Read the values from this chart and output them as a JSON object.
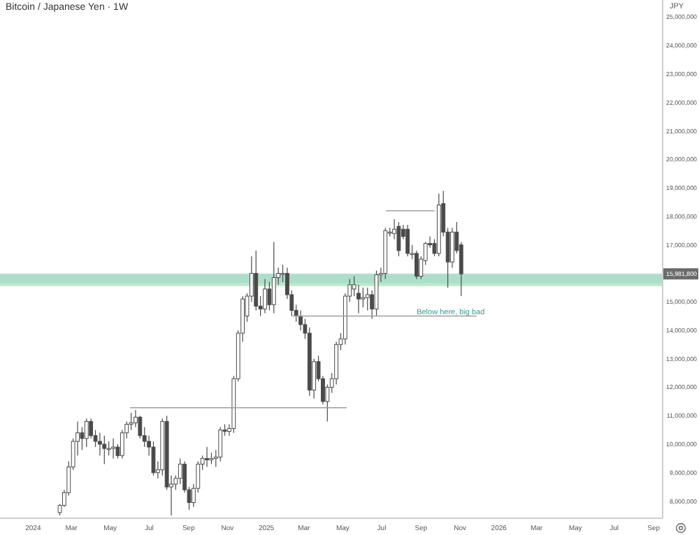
{
  "chart_data": {
    "type": "candlestick",
    "title": "Bitcoin / Japanese Yen · 1W",
    "ylabel": "JPY",
    "color": "#4a4a4a",
    "x": [
      "2024-02-12",
      "2024-02-19",
      "2024-02-26",
      "2024-03-04",
      "2024-03-11",
      "2024-03-18",
      "2024-03-25",
      "2024-04-01",
      "2024-04-08",
      "2024-04-15",
      "2024-04-22",
      "2024-04-29",
      "2024-05-06",
      "2024-05-13",
      "2024-05-20",
      "2024-05-27",
      "2024-06-03",
      "2024-06-10",
      "2024-06-17",
      "2024-06-24",
      "2024-07-01",
      "2024-07-08",
      "2024-07-15",
      "2024-07-22",
      "2024-07-29",
      "2024-08-05",
      "2024-08-12",
      "2024-08-19",
      "2024-08-26",
      "2024-09-02",
      "2024-09-09",
      "2024-09-16",
      "2024-09-23",
      "2024-09-30",
      "2024-10-07",
      "2024-10-14",
      "2024-10-21",
      "2024-10-28",
      "2024-11-04",
      "2024-11-11",
      "2024-11-18",
      "2024-11-25",
      "2024-12-02",
      "2024-12-09",
      "2024-12-16",
      "2024-12-23",
      "2024-12-30",
      "2025-01-06",
      "2025-01-13",
      "2025-01-20",
      "2025-01-27",
      "2025-02-03",
      "2025-02-10",
      "2025-02-17",
      "2025-02-24",
      "2025-03-03",
      "2025-03-10",
      "2025-03-17",
      "2025-03-24",
      "2025-03-31",
      "2025-04-07",
      "2025-04-14",
      "2025-04-21",
      "2025-04-28",
      "2025-05-05",
      "2025-05-12",
      "2025-05-19",
      "2025-05-26",
      "2025-06-02",
      "2025-06-09",
      "2025-06-16",
      "2025-06-23",
      "2025-06-30",
      "2025-07-07",
      "2025-07-14",
      "2025-07-21",
      "2025-07-28",
      "2025-08-04",
      "2025-08-11",
      "2025-08-18",
      "2025-08-25",
      "2025-09-01",
      "2025-09-08",
      "2025-09-15",
      "2025-09-22",
      "2025-09-29",
      "2025-10-06",
      "2025-10-13",
      "2025-10-20",
      "2025-10-27",
      "2025-11-03"
    ],
    "ohlc": [
      [
        7600000,
        7900000,
        7500000,
        7850000
      ],
      [
        7850000,
        8400000,
        7800000,
        8300000
      ],
      [
        8300000,
        9400000,
        8200000,
        9200000
      ],
      [
        9200000,
        10200000,
        9100000,
        10100000
      ],
      [
        10100000,
        10800000,
        9600000,
        10400000
      ],
      [
        10400000,
        10600000,
        9800000,
        10200000
      ],
      [
        10200000,
        10900000,
        9900000,
        10800000
      ],
      [
        10800000,
        10900000,
        10200000,
        10300000
      ],
      [
        10300000,
        10500000,
        9900000,
        10100000
      ],
      [
        10100000,
        10400000,
        9600000,
        10000000
      ],
      [
        10000000,
        10300000,
        9300000,
        9850000
      ],
      [
        9850000,
        10100000,
        9600000,
        9850000
      ],
      [
        9850000,
        10200000,
        9500000,
        9900000
      ],
      [
        9900000,
        10000000,
        9500000,
        9600000
      ],
      [
        9600000,
        10500000,
        9500000,
        10400000
      ],
      [
        10400000,
        10800000,
        10200000,
        10700000
      ],
      [
        10700000,
        11100000,
        10500000,
        10750000
      ],
      [
        10750000,
        11200000,
        10600000,
        10950000
      ],
      [
        10950000,
        11000000,
        10200000,
        10300000
      ],
      [
        10300000,
        10600000,
        9900000,
        10100000
      ],
      [
        10100000,
        10300000,
        9600000,
        9900000
      ],
      [
        9900000,
        10100000,
        8900000,
        9000000
      ],
      [
        9000000,
        9400000,
        8800000,
        9100000
      ],
      [
        9100000,
        10900000,
        8900000,
        10800000
      ],
      [
        10800000,
        11000000,
        8400000,
        8500000
      ],
      [
        8500000,
        8900000,
        7500000,
        8600000
      ],
      [
        8600000,
        8900000,
        8400000,
        8800000
      ],
      [
        8800000,
        9500000,
        8600000,
        9300000
      ],
      [
        9300000,
        9400000,
        8300000,
        8400000
      ],
      [
        8400000,
        8500000,
        7700000,
        7950000
      ],
      [
        7950000,
        8600000,
        7800000,
        8450000
      ],
      [
        8450000,
        9400000,
        8300000,
        9300000
      ],
      [
        9300000,
        9600000,
        9100000,
        9500000
      ],
      [
        9500000,
        9900000,
        9200000,
        9450000
      ],
      [
        9450000,
        9700000,
        9300000,
        9500000
      ],
      [
        9500000,
        9800000,
        9200000,
        9550000
      ],
      [
        9550000,
        10600000,
        9400000,
        10500000
      ],
      [
        10500000,
        10700000,
        10300000,
        10450000
      ],
      [
        10450000,
        10700000,
        10300000,
        10550000
      ],
      [
        10550000,
        12400000,
        10400000,
        12300000
      ],
      [
        12300000,
        14000000,
        12200000,
        13900000
      ],
      [
        13900000,
        15200000,
        13600000,
        15100000
      ],
      [
        14500000,
        15300000,
        14300000,
        15200000
      ],
      [
        15200000,
        16600000,
        15000000,
        16000000
      ],
      [
        16000000,
        16800000,
        14700000,
        14850000
      ],
      [
        14850000,
        15200000,
        14500000,
        14750000
      ],
      [
        14750000,
        15800000,
        14600000,
        15450000
      ],
      [
        15450000,
        15700000,
        14700000,
        14900000
      ],
      [
        14900000,
        17100000,
        14600000,
        15850000
      ],
      [
        15850000,
        16200000,
        15600000,
        16000000
      ],
      [
        16000000,
        16300000,
        15700000,
        16000000
      ],
      [
        16000000,
        16200000,
        15100000,
        15250000
      ],
      [
        15250000,
        15400000,
        14500000,
        14700000
      ],
      [
        14700000,
        14900000,
        14300000,
        14500000
      ],
      [
        14500000,
        14700000,
        14000000,
        14200000
      ],
      [
        14200000,
        14400000,
        13700000,
        13900000
      ],
      [
        13900000,
        14100000,
        11700000,
        11900000
      ],
      [
        11900000,
        13000000,
        11600000,
        12900000
      ],
      [
        12900000,
        13100000,
        12200000,
        12300000
      ],
      [
        12300000,
        12400000,
        11400000,
        11500000
      ],
      [
        11500000,
        12100000,
        10800000,
        12000000
      ],
      [
        12000000,
        12500000,
        11800000,
        12300000
      ],
      [
        12300000,
        13600000,
        12100000,
        13500000
      ],
      [
        13500000,
        13900000,
        13300000,
        13700000
      ],
      [
        13700000,
        15300000,
        13500000,
        15200000
      ],
      [
        15200000,
        15800000,
        15000000,
        15600000
      ],
      [
        15450000,
        15900000,
        15200000,
        15600000
      ],
      [
        15300000,
        15600000,
        14600000,
        15100000
      ],
      [
        15100000,
        15500000,
        14800000,
        15150000
      ],
      [
        15150000,
        15500000,
        14700000,
        15250000
      ],
      [
        15250000,
        15400000,
        14400000,
        14750000
      ],
      [
        14750000,
        16100000,
        14500000,
        15950000
      ],
      [
        15950000,
        16200000,
        15700000,
        16000000
      ],
      [
        16000000,
        17600000,
        15800000,
        17500000
      ],
      [
        17450000,
        17600000,
        17300000,
        17450000
      ],
      [
        17400000,
        17900000,
        17200000,
        17550000
      ],
      [
        17650000,
        17800000,
        16600000,
        16800000
      ],
      [
        17550000,
        17700000,
        17200000,
        17300000
      ],
      [
        17550000,
        17700000,
        16600000,
        16700000
      ],
      [
        16700000,
        17000000,
        16500000,
        16700000
      ],
      [
        16700000,
        16800000,
        15800000,
        15900000
      ],
      [
        15900000,
        16600000,
        15800000,
        16500000
      ],
      [
        16450000,
        17100000,
        16300000,
        17050000
      ],
      [
        17050000,
        17300000,
        16900000,
        17000000
      ],
      [
        17050000,
        17200000,
        16600000,
        16700000
      ],
      [
        16700000,
        18800000,
        16600000,
        18400000
      ],
      [
        18450000,
        18900000,
        17300000,
        17450000
      ],
      [
        17450000,
        17600000,
        15500000,
        16400000
      ],
      [
        16400000,
        17600000,
        16200000,
        17450000
      ],
      [
        17450000,
        17800000,
        16700000,
        16800000
      ],
      [
        17000000,
        17100000,
        15200000,
        15981800
      ]
    ],
    "series": [
      {
        "type": "line",
        "color": "#9e9e9e",
        "x": [
          "2024-06-01",
          "2025-05-07"
        ],
        "values": [
          11280000,
          11280000
        ]
      },
      {
        "type": "line",
        "color": "#9e9e9e",
        "x": [
          "2025-02-11",
          "2025-11-27"
        ],
        "values": [
          14500000,
          14500000
        ]
      },
      {
        "type": "line",
        "color": "#9e9e9e",
        "x": [
          "2025-07-08",
          "2025-09-22"
        ],
        "values": [
          18200000,
          18200000
        ]
      }
    ],
    "bands": [
      {
        "axis": "y",
        "from": 15650000,
        "to": 16000000,
        "color": "#b7cff5"
      },
      {
        "axis": "y",
        "from": 15550000,
        "to": 15980000,
        "color": "#93dcaa"
      }
    ],
    "annotations": [
      {
        "text": "Below here, big bad",
        "x": "2025-08-25",
        "y": 14650000
      }
    ],
    "xlim": [
      "2023-11-10",
      "2026-09-15"
    ],
    "xticks": [
      {
        "value": "2024-01-01",
        "label": "2024"
      },
      {
        "value": "2024-03-01",
        "label": "Mar"
      },
      {
        "value": "2024-05-01",
        "label": "May"
      },
      {
        "value": "2024-07-01",
        "label": "Jul"
      },
      {
        "value": "2024-09-01",
        "label": "Sep"
      },
      {
        "value": "2024-11-01",
        "label": "Nov"
      },
      {
        "value": "2025-01-01",
        "label": "2025"
      },
      {
        "value": "2025-03-01",
        "label": "Mar"
      },
      {
        "value": "2025-05-01",
        "label": "May"
      },
      {
        "value": "2025-07-01",
        "label": "Jul"
      },
      {
        "value": "2025-09-01",
        "label": "Sep"
      },
      {
        "value": "2025-11-01",
        "label": "Nov"
      },
      {
        "value": "2026-01-01",
        "label": "2026"
      },
      {
        "value": "2026-03-01",
        "label": "Mar"
      },
      {
        "value": "2026-05-01",
        "label": "May"
      },
      {
        "value": "2026-07-01",
        "label": "Jul"
      },
      {
        "value": "2026-09-01",
        "label": "Sep"
      }
    ],
    "ylim": [
      7400000,
      25600000
    ],
    "yticks": [
      {
        "value": 8000000,
        "label": "8,000,000"
      },
      {
        "value": 9000000,
        "label": "9,000,000"
      },
      {
        "value": 10000000,
        "label": "10,000,000"
      },
      {
        "value": 11000000,
        "label": "11,000,000"
      },
      {
        "value": 12000000,
        "label": "12,000,000"
      },
      {
        "value": 13000000,
        "label": "13,000,000"
      },
      {
        "value": 14000000,
        "label": "14,000,000"
      },
      {
        "value": 15000000,
        "label": "15,000,000"
      },
      {
        "value": 15981800,
        "label": "15,981,800"
      },
      {
        "value": 17000000,
        "label": "17,000,000"
      },
      {
        "value": 18000000,
        "label": "18,000,000"
      },
      {
        "value": 19000000,
        "label": "19,000,000"
      },
      {
        "value": 20000000,
        "label": "20,000,000"
      },
      {
        "value": 21000000,
        "label": "21,000,000"
      },
      {
        "value": 22000000,
        "label": "22,000,000"
      },
      {
        "value": 23000000,
        "label": "23,000,000"
      },
      {
        "value": 24000000,
        "label": "24,000,000"
      },
      {
        "value": 25000000,
        "label": "25,000,000"
      }
    ]
  }
}
